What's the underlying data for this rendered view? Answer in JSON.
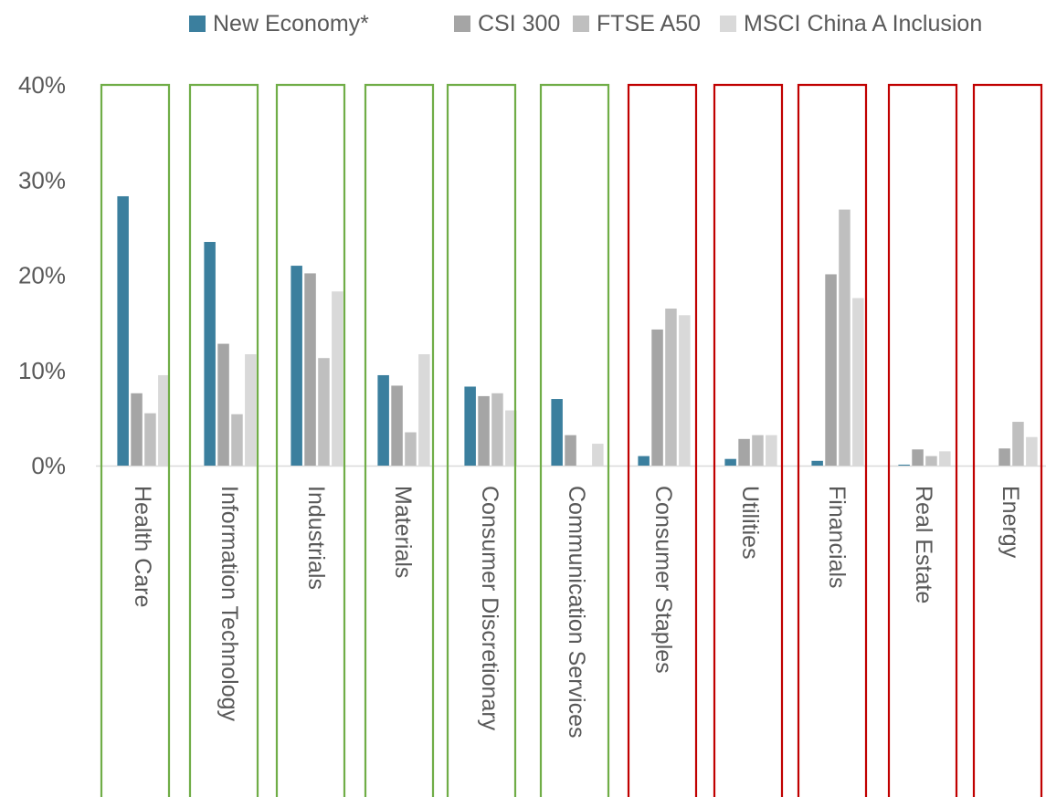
{
  "legend": {
    "items": [
      {
        "label": "New Economy*",
        "color": "#3b7f9e"
      },
      {
        "label": "CSI 300",
        "color": "#a5a5a5"
      },
      {
        "label": "FTSE A50",
        "color": "#bfbfbf"
      },
      {
        "label": "MSCI China A Inclusion",
        "color": "#d9d9d9"
      }
    ]
  },
  "chart_data": {
    "type": "bar",
    "categories": [
      "Health Care",
      "Information Technology",
      "Industrials",
      "Materials",
      "Consumer Discretionary",
      "Communication Services",
      "Consumer Staples",
      "Utilities",
      "Financials",
      "Real Estate",
      "Energy"
    ],
    "series": [
      {
        "name": "New Economy*",
        "color": "#3b7f9e",
        "values": [
          28.3,
          23.5,
          21.0,
          9.5,
          8.3,
          7.0,
          1.0,
          0.7,
          0.5,
          0.1,
          0.0
        ]
      },
      {
        "name": "CSI 300",
        "color": "#a5a5a5",
        "values": [
          7.6,
          12.8,
          20.2,
          8.4,
          7.3,
          3.2,
          14.3,
          2.8,
          20.1,
          1.7,
          1.8
        ]
      },
      {
        "name": "FTSE A50",
        "color": "#bfbfbf",
        "values": [
          5.5,
          5.4,
          11.3,
          3.5,
          7.6,
          0.0,
          16.5,
          3.2,
          26.9,
          1.0,
          4.6
        ]
      },
      {
        "name": "MSCI China A Inclusion",
        "color": "#d9d9d9",
        "values": [
          9.5,
          11.7,
          18.3,
          11.7,
          5.8,
          2.3,
          15.8,
          3.2,
          17.6,
          1.5,
          3.0
        ]
      }
    ],
    "ylim": [
      0,
      40
    ],
    "yticks": [
      "0%",
      "10%",
      "20%",
      "30%",
      "40%"
    ],
    "ytick_values": [
      0,
      10,
      20,
      30,
      40
    ],
    "highlight_groups": {
      "green": [
        "Health Care",
        "Information Technology",
        "Industrials",
        "Materials",
        "Consumer Discretionary",
        "Communication Services"
      ],
      "red": [
        "Consumer Staples",
        "Utilities",
        "Financials",
        "Real Estate",
        "Energy"
      ]
    },
    "highlight_colors": {
      "green": "#70ad47",
      "red": "#c00000"
    },
    "legend_position": "top-right",
    "grid": false
  }
}
